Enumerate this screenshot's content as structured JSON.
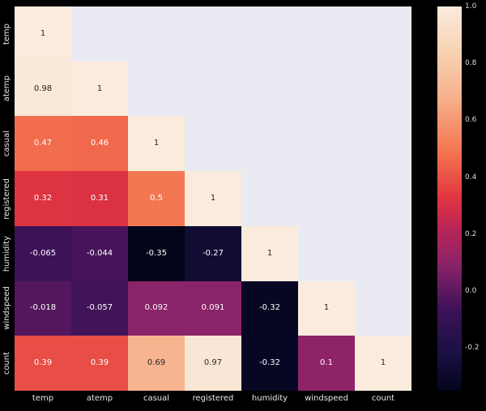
{
  "figure": {
    "background": "#000000",
    "axes_background": "#eaeaf2",
    "tick_label_color": "#e8e8e8",
    "colorbar_label_color": "#d8d8d8",
    "annotation_dark_color": "#262626",
    "annotation_light_color": "#ffffff"
  },
  "chart_data": {
    "type": "heatmap",
    "title": "",
    "mask": "upper-triangle",
    "colormap": "rocket",
    "vmin": -0.35,
    "vmax": 1.0,
    "variables": [
      "temp",
      "atemp",
      "casual",
      "registered",
      "humidity",
      "windspeed",
      "count"
    ],
    "matrix": [
      [
        1,
        null,
        null,
        null,
        null,
        null,
        null
      ],
      [
        0.98,
        1,
        null,
        null,
        null,
        null,
        null
      ],
      [
        0.47,
        0.46,
        1,
        null,
        null,
        null,
        null
      ],
      [
        0.32,
        0.31,
        0.5,
        1,
        null,
        null,
        null
      ],
      [
        -0.065,
        -0.044,
        -0.35,
        -0.27,
        1,
        null,
        null
      ],
      [
        -0.018,
        -0.057,
        0.092,
        0.091,
        -0.32,
        1,
        null
      ],
      [
        0.39,
        0.39,
        0.69,
        0.97,
        -0.32,
        0.1,
        1
      ]
    ],
    "annotations": [
      [
        "1"
      ],
      [
        "0.98",
        "1"
      ],
      [
        "0.47",
        "0.46",
        "1"
      ],
      [
        "0.32",
        "0.31",
        "0.5",
        "1"
      ],
      [
        "-0.065",
        "-0.044",
        "-0.35",
        "-0.27",
        "1"
      ],
      [
        "-0.018",
        "-0.057",
        "0.092",
        "0.091",
        "-0.32",
        "1"
      ],
      [
        "0.39",
        "0.39",
        "0.69",
        "0.97",
        "-0.32",
        "0.1",
        "1"
      ]
    ],
    "colorbar": {
      "ticks": [
        1.0,
        0.8,
        0.6,
        0.4,
        0.2,
        0.0,
        -0.2
      ],
      "tick_labels": [
        "1.0",
        "0.8",
        "0.6",
        "0.4",
        "0.2",
        "0.0",
        "-0.2"
      ]
    },
    "colormap_stops": [
      {
        "t": 0.0,
        "color": "#03051a"
      },
      {
        "t": 0.1,
        "color": "#1b1044"
      },
      {
        "t": 0.21,
        "color": "#3c1258"
      },
      {
        "t": 0.33,
        "color": "#8c2369"
      },
      {
        "t": 0.42,
        "color": "#b82557"
      },
      {
        "t": 0.5,
        "color": "#e03440"
      },
      {
        "t": 0.62,
        "color": "#f3744e"
      },
      {
        "t": 0.77,
        "color": "#f6b48f"
      },
      {
        "t": 0.88,
        "color": "#f8d2b1"
      },
      {
        "t": 1.0,
        "color": "#faebdd"
      }
    ]
  }
}
